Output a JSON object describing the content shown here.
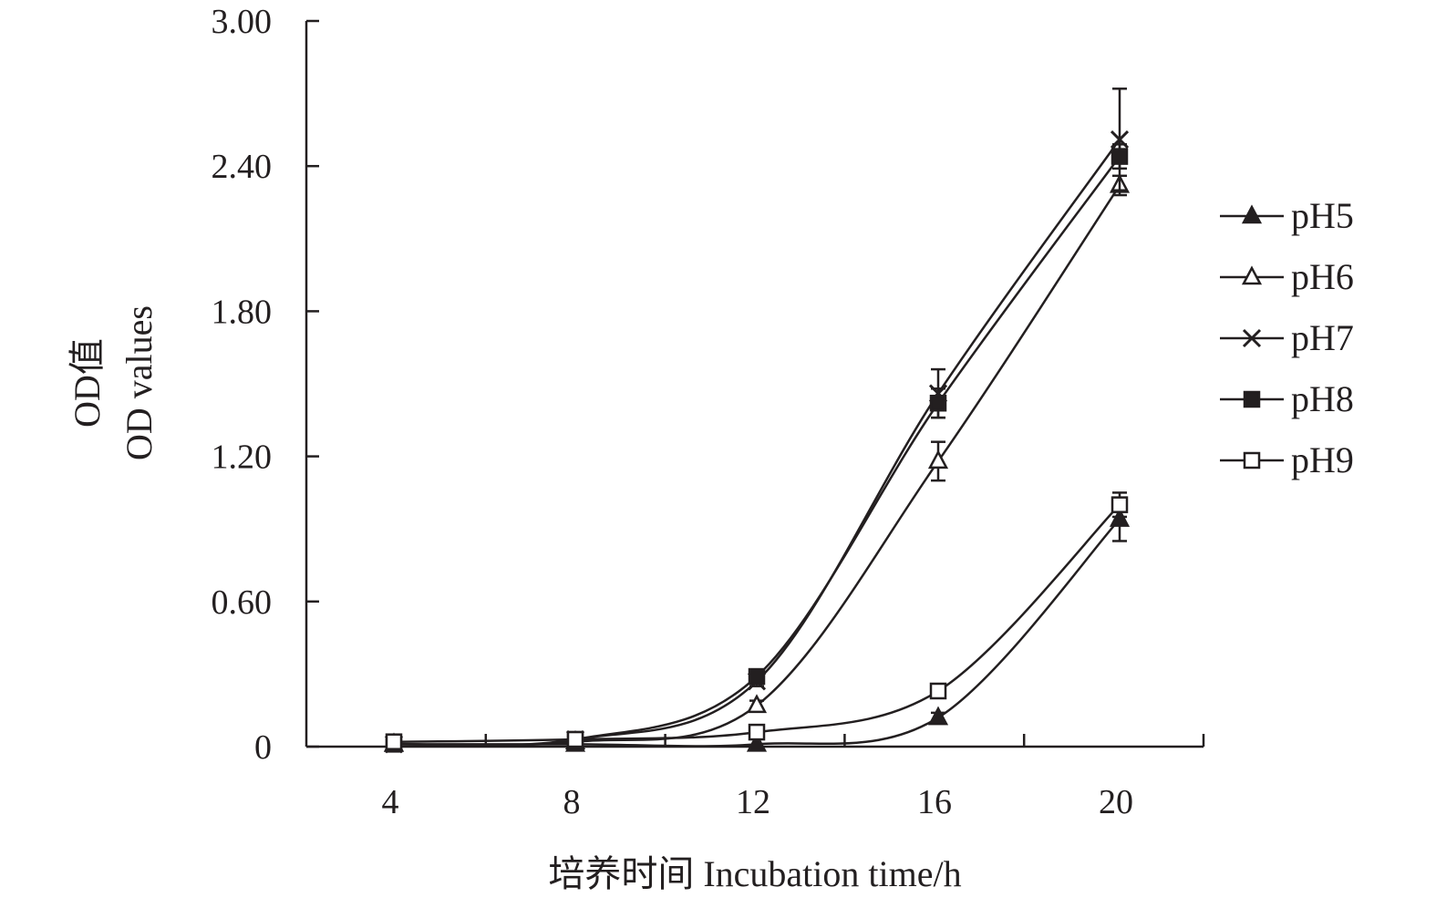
{
  "chart_data": {
    "type": "line",
    "title": "",
    "xlabel": "培养时间 Incubation time/h",
    "ylabel_cn": "OD值",
    "ylabel_en": "OD values",
    "x": [
      4,
      8,
      12,
      16,
      20
    ],
    "x_tick_labels": [
      "4",
      "8",
      "12",
      "16",
      "20"
    ],
    "ylim": [
      0,
      3.0
    ],
    "y_ticks": [
      0,
      0.6,
      1.2,
      1.8,
      2.4,
      3.0
    ],
    "y_tick_labels": [
      "0",
      "0.60",
      "1.20",
      "1.80",
      "2.40",
      "3.00"
    ],
    "grid": false,
    "legend_position": "right",
    "series": [
      {
        "name": "pH5",
        "marker": "triangle-filled",
        "values": [
          0.01,
          0.01,
          0.01,
          0.12,
          0.94
        ],
        "errors": [
          0,
          0,
          0,
          0.02,
          0.09
        ]
      },
      {
        "name": "pH6",
        "marker": "triangle-open",
        "values": [
          0.01,
          0.02,
          0.17,
          1.18,
          2.32
        ],
        "errors": [
          0,
          0,
          0.02,
          0.08,
          0.04
        ]
      },
      {
        "name": "pH7",
        "marker": "cross",
        "values": [
          0.01,
          0.03,
          0.27,
          1.46,
          2.51
        ],
        "errors": [
          0,
          0,
          0.02,
          0.1,
          0.21
        ]
      },
      {
        "name": "pH8",
        "marker": "square-filled",
        "values": [
          0.01,
          0.03,
          0.29,
          1.42,
          2.44
        ],
        "errors": [
          0,
          0,
          0.01,
          0.06,
          0.05
        ]
      },
      {
        "name": "pH9",
        "marker": "square-open",
        "values": [
          0.02,
          0.03,
          0.06,
          0.23,
          1.0
        ],
        "errors": [
          0,
          0,
          0.01,
          0.02,
          0.05
        ]
      }
    ],
    "colors": {
      "ink": "#231f20",
      "background": "#ffffff"
    }
  }
}
